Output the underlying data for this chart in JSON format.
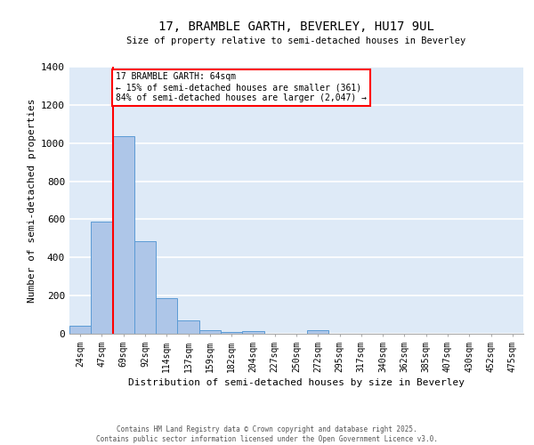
{
  "title_line1": "17, BRAMBLE GARTH, BEVERLEY, HU17 9UL",
  "title_line2": "Size of property relative to semi-detached houses in Beverley",
  "xlabel": "Distribution of semi-detached houses by size in Beverley",
  "ylabel": "Number of semi-detached properties",
  "categories": [
    "24sqm",
    "47sqm",
    "69sqm",
    "92sqm",
    "114sqm",
    "137sqm",
    "159sqm",
    "182sqm",
    "204sqm",
    "227sqm",
    "250sqm",
    "272sqm",
    "295sqm",
    "317sqm",
    "340sqm",
    "362sqm",
    "385sqm",
    "407sqm",
    "430sqm",
    "452sqm",
    "475sqm"
  ],
  "values": [
    40,
    590,
    1035,
    485,
    185,
    70,
    20,
    10,
    15,
    0,
    0,
    20,
    0,
    0,
    0,
    0,
    0,
    0,
    0,
    0,
    0
  ],
  "bar_color": "#aec6e8",
  "bar_edge_color": "#5b9bd5",
  "background_color": "#deeaf7",
  "grid_color": "#ffffff",
  "vline_x_index": 2,
  "vline_color": "red",
  "annotation_text": "17 BRAMBLE GARTH: 64sqm\n← 15% of semi-detached houses are smaller (361)\n84% of semi-detached houses are larger (2,047) →",
  "annotation_box_color": "red",
  "ylim": [
    0,
    1400
  ],
  "yticks": [
    0,
    200,
    400,
    600,
    800,
    1000,
    1200,
    1400
  ],
  "footer_line1": "Contains HM Land Registry data © Crown copyright and database right 2025.",
  "footer_line2": "Contains public sector information licensed under the Open Government Licence v3.0."
}
